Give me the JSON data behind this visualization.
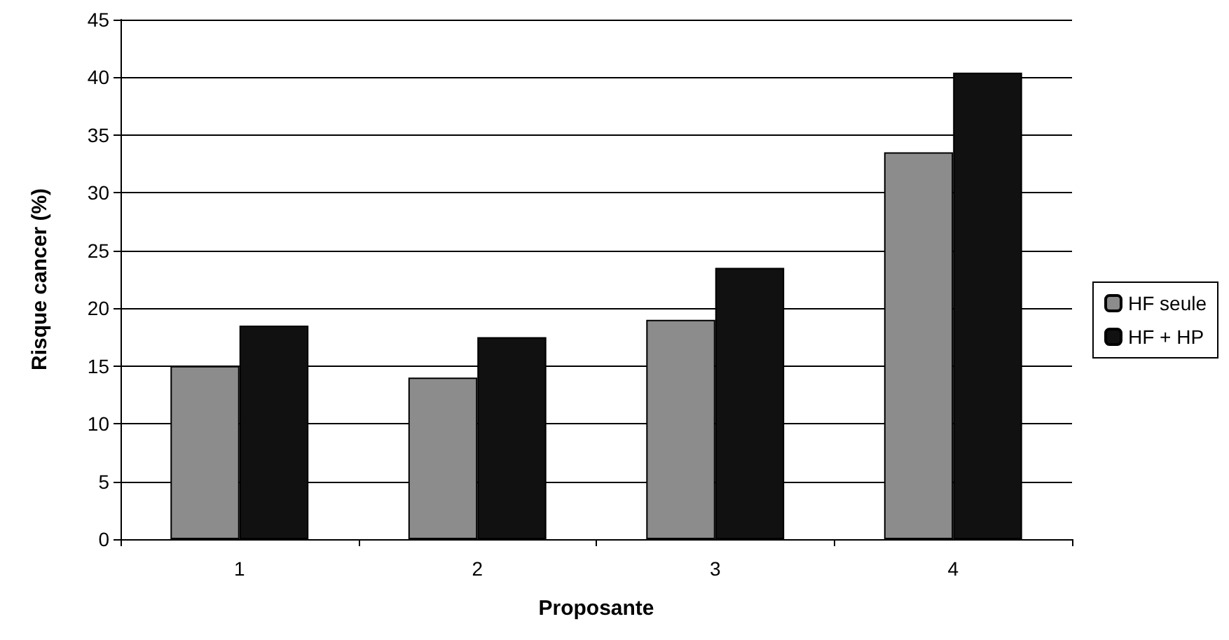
{
  "chart_data": {
    "type": "bar",
    "xlabel": "Proposante",
    "ylabel": "Risque cancer (%)",
    "categories": [
      "1",
      "2",
      "3",
      "4"
    ],
    "series": [
      {
        "name": "HF seule",
        "color": "#8c8c8c",
        "values": [
          15,
          14,
          19,
          33.5
        ]
      },
      {
        "name": "HF + HP",
        "color": "#111111",
        "values": [
          18.5,
          17.5,
          23.5,
          40.4
        ]
      }
    ],
    "ylim": [
      0,
      45
    ],
    "yticks": [
      0,
      5,
      10,
      15,
      20,
      25,
      30,
      35,
      40,
      45
    ],
    "grid": "y",
    "legend": "right"
  }
}
